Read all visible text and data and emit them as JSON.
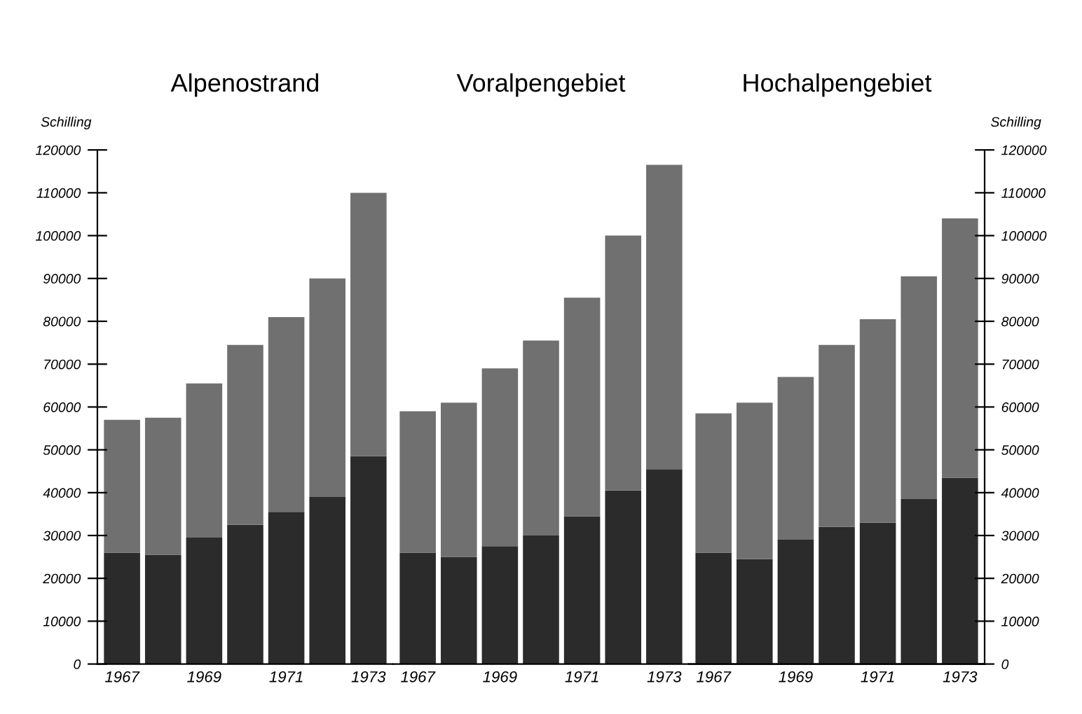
{
  "chart_data": [
    {
      "type": "bar",
      "title": "Alpenostrand",
      "ylabel": "Schilling",
      "stacked": true,
      "categories": [
        "1967",
        null,
        "1969",
        null,
        "1971",
        null,
        "1973"
      ],
      "series": [
        {
          "color": "#2b2b2b",
          "values": [
            26000,
            25500,
            29500,
            32500,
            35500,
            39000,
            48500
          ]
        },
        {
          "color": "#707070",
          "values": [
            31000,
            32000,
            36000,
            42000,
            45500,
            51000,
            61500
          ]
        }
      ],
      "ylim": [
        0,
        120000
      ],
      "yticks": [
        0,
        10000,
        20000,
        30000,
        40000,
        50000,
        60000,
        70000,
        80000,
        90000,
        100000,
        110000,
        120000
      ],
      "grid": false,
      "legend": false
    },
    {
      "type": "bar",
      "title": "Voralpengebiet",
      "stacked": true,
      "categories": [
        "1967",
        null,
        "1969",
        null,
        "1971",
        null,
        "1973"
      ],
      "series": [
        {
          "color": "#2b2b2b",
          "values": [
            26000,
            25000,
            27500,
            30000,
            34500,
            40500,
            45500
          ]
        },
        {
          "color": "#707070",
          "values": [
            33000,
            36000,
            41500,
            45500,
            51000,
            59500,
            71000
          ]
        }
      ],
      "ylim": [
        0,
        120000
      ],
      "tick_labels": "x",
      "grid": false,
      "legend": false
    },
    {
      "type": "bar",
      "title": "Hochalpengebiet",
      "y2label": "Schilling",
      "stacked": true,
      "categories": [
        "1967",
        null,
        "1969",
        null,
        "1971",
        null,
        "1973"
      ],
      "series": [
        {
          "color": "#2b2b2b",
          "axis": "y2",
          "values": [
            26000,
            24500,
            29000,
            32000,
            33000,
            38500,
            43500
          ]
        },
        {
          "color": "#707070",
          "axis": "y2",
          "values": [
            32500,
            36500,
            38000,
            42500,
            47500,
            52000,
            60500
          ]
        }
      ],
      "y2lim": [
        0,
        120000
      ],
      "y2ticks": [
        0,
        10000,
        20000,
        30000,
        40000,
        50000,
        60000,
        70000,
        80000,
        90000,
        100000,
        110000,
        120000
      ],
      "grid": false,
      "legend": false
    }
  ]
}
